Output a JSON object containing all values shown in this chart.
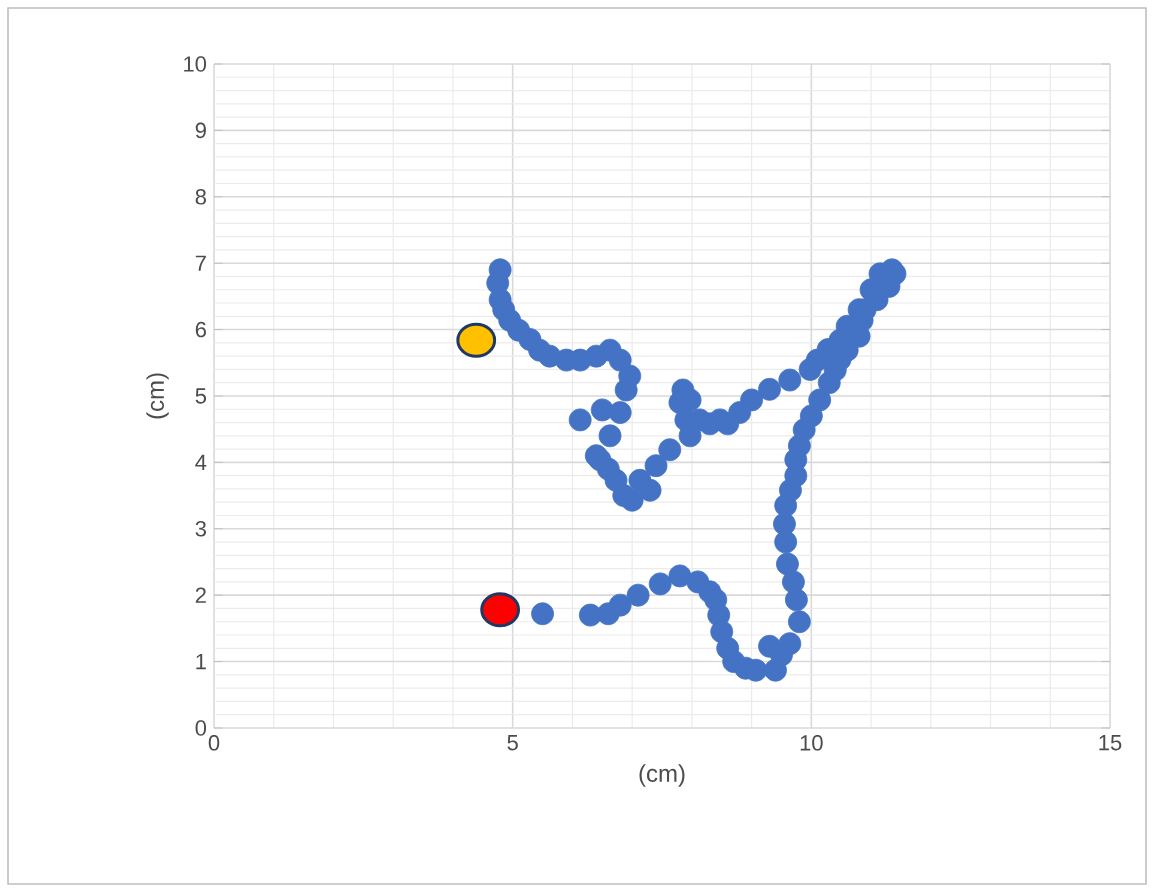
{
  "chart_data": {
    "type": "scatter",
    "xlabel": "(cm)",
    "ylabel": "(cm)",
    "xlim": [
      0,
      15
    ],
    "ylim": [
      0,
      10
    ],
    "xticks": [
      0,
      5,
      10,
      15
    ],
    "yticks": [
      0,
      1,
      2,
      3,
      4,
      5,
      6,
      7,
      8,
      9,
      10
    ],
    "grid": true,
    "marker": "circle",
    "series": [
      {
        "color": "#4472c4",
        "x": [
          5.5,
          6.3,
          6.6,
          6.8,
          7.1,
          7.47,
          7.8,
          8.1,
          8.3,
          8.4,
          8.45,
          8.5,
          8.6,
          8.7,
          8.9,
          9.07,
          9.3,
          9.4,
          9.5,
          9.64,
          9.8,
          9.75,
          9.7,
          9.6,
          9.57,
          9.55,
          9.57,
          9.65,
          9.74,
          9.74,
          9.8,
          9.88,
          10.0,
          10.14,
          10.3,
          10.4,
          10.48,
          10.6,
          10.8,
          10.85,
          10.9,
          11.1,
          11.3,
          11.4,
          11.35,
          11.15,
          11.0,
          10.8,
          10.6,
          10.48,
          10.28,
          10.1,
          9.98,
          9.64,
          9.3,
          9.0,
          8.8,
          8.6,
          8.47,
          8.3,
          8.13,
          7.97,
          7.85,
          7.8,
          7.9,
          7.97,
          7.63,
          7.4,
          7.13,
          7.3,
          7.0,
          6.86,
          6.73,
          6.6,
          6.46,
          6.63,
          6.4,
          6.13,
          6.5,
          6.8,
          6.9,
          6.96,
          6.8,
          6.63,
          6.4,
          6.13,
          5.9,
          5.62,
          5.45,
          5.29,
          5.1,
          4.95,
          4.85,
          4.79,
          4.75,
          4.79
        ],
        "values": [
          1.72,
          1.7,
          1.72,
          1.85,
          2.0,
          2.17,
          2.29,
          2.2,
          2.05,
          1.93,
          1.7,
          1.45,
          1.2,
          1.0,
          0.9,
          0.87,
          1.23,
          0.87,
          1.1,
          1.27,
          1.6,
          1.93,
          2.2,
          2.47,
          2.8,
          3.07,
          3.35,
          3.58,
          3.8,
          4.04,
          4.25,
          4.49,
          4.7,
          4.94,
          5.2,
          5.39,
          5.55,
          5.69,
          5.9,
          6.14,
          6.3,
          6.45,
          6.65,
          6.84,
          6.9,
          6.84,
          6.6,
          6.3,
          6.05,
          5.84,
          5.7,
          5.54,
          5.4,
          5.24,
          5.1,
          4.94,
          4.75,
          4.58,
          4.64,
          4.58,
          4.64,
          4.94,
          5.09,
          4.9,
          4.64,
          4.4,
          4.19,
          3.95,
          3.73,
          3.58,
          3.43,
          3.5,
          3.73,
          3.9,
          4.04,
          4.4,
          4.1,
          4.64,
          4.79,
          4.75,
          5.09,
          5.3,
          5.54,
          5.69,
          5.6,
          5.54,
          5.54,
          5.6,
          5.69,
          5.85,
          5.99,
          6.14,
          6.3,
          6.45,
          6.7,
          6.9
        ]
      },
      {
        "color": "#ff0000",
        "x": [
          4.79
        ],
        "values": [
          1.78
        ]
      },
      {
        "color": "#ffc000",
        "x": [
          4.39
        ],
        "values": [
          5.84
        ]
      }
    ]
  }
}
